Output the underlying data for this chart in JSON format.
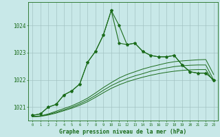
{
  "x": [
    0,
    1,
    2,
    3,
    4,
    5,
    6,
    7,
    8,
    9,
    10,
    11,
    12,
    13,
    14,
    15,
    16,
    17,
    18,
    19,
    20,
    21,
    22,
    23
  ],
  "line1": [
    1020.7,
    1020.75,
    1021.0,
    1021.1,
    1021.45,
    1021.6,
    1021.85,
    1022.65,
    1023.05,
    1023.65,
    1024.55,
    1024.0,
    1023.3,
    1023.35,
    1023.05,
    1022.9,
    1022.85,
    1022.85,
    1022.9,
    1022.55,
    1022.3,
    1022.25,
    1022.25,
    1022.0
  ],
  "line2": [
    1020.7,
    1020.75,
    1021.0,
    1021.1,
    1021.45,
    1021.6,
    1021.85,
    1022.65,
    1023.05,
    1023.65,
    1024.55,
    1023.35,
    1023.3,
    1023.35,
    1023.05,
    1022.9,
    1022.85,
    1022.85,
    1022.9,
    1022.55,
    1022.3,
    1022.25,
    1022.25,
    1022.0
  ],
  "smooth1": [
    1020.65,
    1020.68,
    1020.75,
    1020.85,
    1020.95,
    1021.05,
    1021.18,
    1021.33,
    1021.52,
    1021.72,
    1021.9,
    1022.07,
    1022.2,
    1022.3,
    1022.4,
    1022.48,
    1022.55,
    1022.62,
    1022.67,
    1022.7,
    1022.72,
    1022.74,
    1022.75,
    1022.2
  ],
  "smooth2": [
    1020.65,
    1020.67,
    1020.73,
    1020.81,
    1020.9,
    1021.0,
    1021.12,
    1021.26,
    1021.43,
    1021.62,
    1021.79,
    1021.93,
    1022.05,
    1022.15,
    1022.23,
    1022.32,
    1022.38,
    1022.44,
    1022.49,
    1022.52,
    1022.54,
    1022.55,
    1022.55,
    1022.0
  ],
  "smooth3": [
    1020.65,
    1020.66,
    1020.71,
    1020.78,
    1020.87,
    1020.96,
    1021.07,
    1021.2,
    1021.36,
    1021.53,
    1021.69,
    1021.82,
    1021.93,
    1022.02,
    1022.1,
    1022.17,
    1022.23,
    1022.28,
    1022.32,
    1022.35,
    1022.37,
    1022.38,
    1022.38,
    1021.93
  ],
  "line_color": "#1a6b1a",
  "bg_color": "#c8e8e8",
  "grid_color": "#a0c0c0",
  "ylabel_vals": [
    1021,
    1022,
    1023,
    1024
  ],
  "ylim": [
    1020.5,
    1024.85
  ],
  "xlim": [
    -0.5,
    23.5
  ],
  "xlabel": "Graphe pression niveau de la mer (hPa)"
}
